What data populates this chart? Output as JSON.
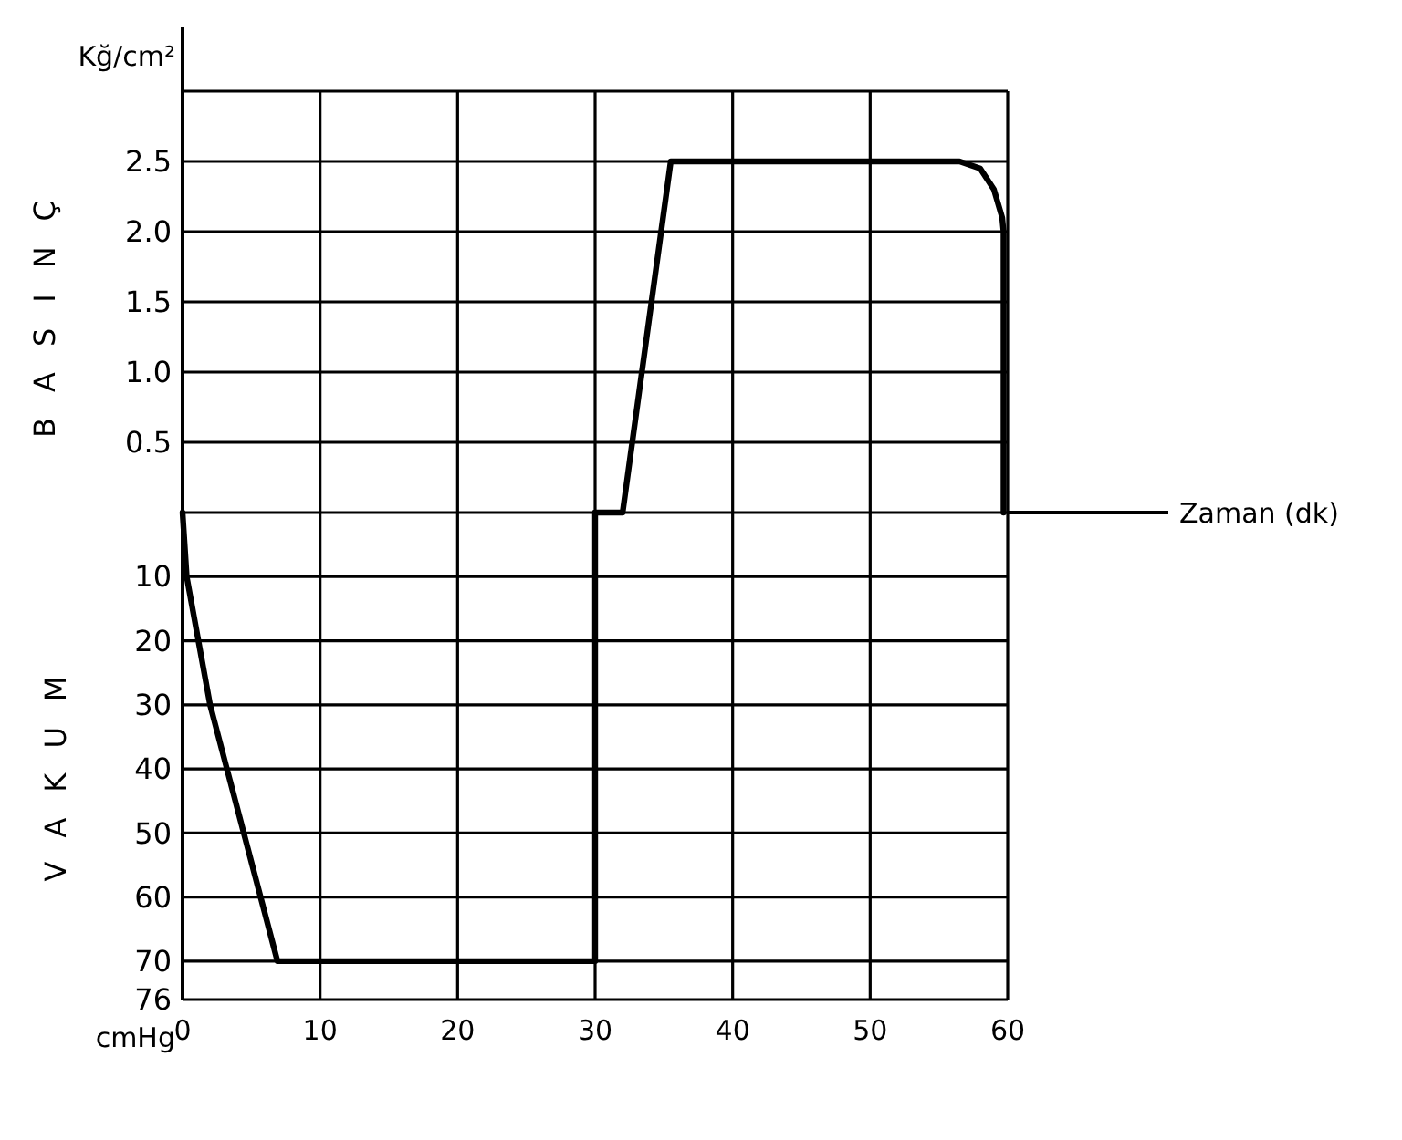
{
  "chart_data": [
    {
      "type": "line",
      "ylabel": "BASINÇ",
      "annotations": [
        "Kğ/cm²"
      ],
      "xlim": [
        0,
        60
      ],
      "xticks": [
        0,
        10,
        20,
        30,
        40,
        50,
        60
      ],
      "ylim": [
        0,
        3
      ],
      "yticks": [
        {
          "value": 0,
          "label": null
        },
        0.5,
        {
          "value": 1,
          "label": "1.0"
        },
        1.5,
        {
          "value": 2,
          "label": "2.0"
        },
        2.5,
        {
          "value": 3,
          "label": null
        }
      ],
      "tick_labels": "y",
      "grid": true,
      "series": [
        {
          "color": "#000000",
          "x": [
            30,
            32,
            35.5,
            56.5,
            58,
            59,
            59.6,
            59.7,
            59.7
          ],
          "values": [
            0,
            0,
            2.5,
            2.5,
            2.45,
            2.3,
            2.1,
            2.0,
            0
          ]
        }
      ]
    },
    {
      "type": "line",
      "ylabel": "VAKUM",
      "xlabel": "Zaman (dk)",
      "annotations": [
        "cmHg"
      ],
      "xlim": [
        0,
        60
      ],
      "xticks": [
        0,
        10,
        20,
        30,
        40,
        50,
        60
      ],
      "ylim": [
        76,
        0
      ],
      "yticks": [
        10,
        20,
        30,
        40,
        50,
        60,
        70,
        76
      ],
      "grid": true,
      "series": [
        {
          "color": "#000000",
          "x": [
            0,
            0.3,
            2,
            6.9,
            30,
            30
          ],
          "values": [
            0,
            10,
            30,
            70,
            70,
            0
          ]
        }
      ]
    }
  ]
}
